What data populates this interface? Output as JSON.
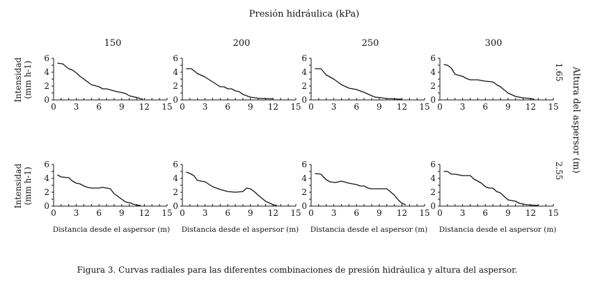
{
  "figure": {
    "top_title": "Presión hidráulica (kPa)",
    "right_title": "Altura del aspersor (m)",
    "caption": "Figura 3. Curvas radiales para las diferentes combinaciones de presión hidráulica y altura del aspersor.",
    "ylabel_line1": "Intensidad",
    "ylabel_line2": "(mm h-1)",
    "xlabel": "Distancia desde el aspersor (m)",
    "column_labels": [
      "150",
      "200",
      "250",
      "300"
    ],
    "row_labels": [
      "1.65",
      "2.55"
    ]
  },
  "chart_data": {
    "type": "line",
    "layout": "grid 2x4 (rows: sprinkler height, columns: pressure)",
    "xlabel": "Distancia desde el aspersor (m)",
    "ylabel": "Intensidad (mm h-1)",
    "xlim": [
      0,
      15
    ],
    "ylim": [
      0,
      6
    ],
    "x_ticks": [
      0,
      3,
      6,
      9,
      12,
      15
    ],
    "y_ticks": [
      0,
      2,
      4,
      6
    ],
    "panels": [
      {
        "row": "1.65",
        "column": "150",
        "x": [
          0.5,
          1.2,
          2,
          2.5,
          3,
          3.5,
          4,
          5,
          6,
          6.5,
          7,
          8,
          9,
          9.5,
          10,
          11,
          11.8
        ],
        "y": [
          5.3,
          5.2,
          4.5,
          4.3,
          3.9,
          3.4,
          3.0,
          2.2,
          1.9,
          1.6,
          1.6,
          1.3,
          1.05,
          0.95,
          0.6,
          0.35,
          0.1
        ]
      },
      {
        "row": "1.65",
        "column": "200",
        "x": [
          0.5,
          1.2,
          2,
          3,
          4,
          5,
          5.5,
          6,
          6.5,
          7,
          7.5,
          8,
          9,
          10,
          11,
          12
        ],
        "y": [
          4.5,
          4.5,
          3.8,
          3.3,
          2.6,
          1.9,
          1.9,
          1.6,
          1.6,
          1.3,
          1.2,
          0.8,
          0.4,
          0.25,
          0.2,
          0.15
        ]
      },
      {
        "row": "1.65",
        "column": "250",
        "x": [
          0.5,
          1.3,
          2,
          2.5,
          3,
          4,
          5,
          6,
          7,
          8,
          8.5,
          9,
          10,
          11,
          12
        ],
        "y": [
          4.5,
          4.5,
          3.6,
          3.3,
          3.0,
          2.2,
          1.7,
          1.5,
          1.1,
          0.6,
          0.4,
          0.35,
          0.2,
          0.15,
          0.1
        ]
      },
      {
        "row": "1.65",
        "column": "300",
        "x": [
          0.5,
          1,
          1.5,
          2,
          3,
          3.5,
          4,
          5,
          5.5,
          6,
          7,
          7.5,
          8,
          9,
          10,
          11,
          12,
          12.5
        ],
        "y": [
          5.1,
          5.0,
          4.6,
          3.7,
          3.4,
          3.1,
          2.9,
          2.9,
          2.8,
          2.7,
          2.6,
          2.2,
          1.9,
          1.0,
          0.5,
          0.3,
          0.2,
          0.1
        ]
      },
      {
        "row": "2.55",
        "column": "150",
        "x": [
          0.5,
          1,
          2,
          2.5,
          3,
          3.5,
          4,
          4.5,
          5,
          6,
          6.5,
          7,
          7.5,
          8,
          9,
          9.5,
          10,
          10.5,
          11,
          11.5
        ],
        "y": [
          4.5,
          4.2,
          4.1,
          3.6,
          3.3,
          3.2,
          2.9,
          2.7,
          2.6,
          2.6,
          2.7,
          2.6,
          2.5,
          1.8,
          1.0,
          0.6,
          0.5,
          0.3,
          0.15,
          0.1
        ]
      },
      {
        "row": "2.55",
        "column": "200",
        "x": [
          0.5,
          1,
          1.5,
          2,
          3,
          4,
          5,
          6,
          7,
          8,
          8.5,
          9,
          9.5,
          10,
          11,
          12,
          12.5
        ],
        "y": [
          4.9,
          4.7,
          4.4,
          3.7,
          3.5,
          2.8,
          2.4,
          2.1,
          2.0,
          2.1,
          2.6,
          2.5,
          2.1,
          1.6,
          0.7,
          0.2,
          0.1
        ]
      },
      {
        "row": "2.55",
        "column": "250",
        "x": [
          0.5,
          1.3,
          2,
          2.5,
          3.2,
          4,
          5,
          5.5,
          6,
          6.5,
          7,
          7.5,
          8,
          9,
          10,
          11,
          11.5,
          12,
          12.5
        ],
        "y": [
          4.7,
          4.6,
          3.8,
          3.5,
          3.4,
          3.6,
          3.3,
          3.2,
          3.1,
          2.9,
          2.9,
          2.6,
          2.5,
          2.5,
          2.5,
          1.6,
          0.9,
          0.4,
          0.2
        ]
      },
      {
        "row": "2.55",
        "column": "300",
        "x": [
          0.5,
          1,
          1.5,
          2,
          3,
          3.5,
          4,
          4.5,
          5,
          5.5,
          6,
          6.5,
          7,
          7.5,
          8,
          9,
          10,
          10.5,
          11,
          11.5,
          12,
          13
        ],
        "y": [
          5.0,
          5.0,
          4.6,
          4.6,
          4.4,
          4.4,
          4.4,
          3.9,
          3.6,
          3.3,
          2.8,
          2.6,
          2.6,
          2.1,
          1.9,
          0.9,
          0.7,
          0.4,
          0.3,
          0.2,
          0.15,
          0.1
        ]
      }
    ]
  }
}
